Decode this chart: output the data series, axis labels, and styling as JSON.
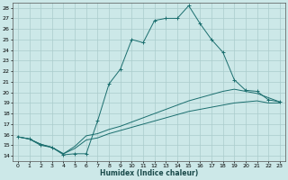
{
  "xlabel": "Humidex (Indice chaleur)",
  "bg_color": "#cce8e8",
  "line_color": "#1a6e6e",
  "grid_color": "#aacccc",
  "xlim": [
    -0.5,
    23.5
  ],
  "ylim": [
    13.5,
    28.5
  ],
  "xticks": [
    0,
    1,
    2,
    3,
    4,
    5,
    6,
    7,
    8,
    9,
    10,
    11,
    12,
    13,
    14,
    15,
    16,
    17,
    18,
    19,
    20,
    21,
    22,
    23
  ],
  "yticks": [
    14,
    15,
    16,
    17,
    18,
    19,
    20,
    21,
    22,
    23,
    24,
    25,
    26,
    27,
    28
  ],
  "line1_x": [
    0,
    1,
    2,
    3,
    4,
    5,
    6,
    7,
    8,
    9,
    10,
    11,
    12,
    13,
    14,
    15,
    16,
    17,
    18,
    19,
    20,
    21,
    22,
    23
  ],
  "line1_y": [
    15.8,
    15.6,
    15.0,
    14.8,
    14.1,
    14.2,
    14.2,
    17.3,
    20.8,
    22.2,
    25.0,
    24.7,
    26.8,
    27.0,
    27.0,
    28.2,
    26.5,
    25.0,
    23.8,
    21.2,
    20.2,
    20.1,
    19.3,
    19.1
  ],
  "line2_x": [
    0,
    1,
    2,
    3,
    4,
    5,
    6,
    7,
    8,
    9,
    10,
    11,
    12,
    13,
    14,
    15,
    16,
    17,
    18,
    19,
    20,
    21,
    22,
    23
  ],
  "line2_y": [
    15.8,
    15.6,
    15.1,
    14.8,
    14.2,
    14.7,
    15.5,
    15.7,
    16.1,
    16.4,
    16.7,
    17.0,
    17.3,
    17.6,
    17.9,
    18.2,
    18.4,
    18.6,
    18.8,
    19.0,
    19.1,
    19.2,
    19.0,
    19.0
  ],
  "line3_x": [
    0,
    1,
    2,
    3,
    4,
    5,
    6,
    7,
    8,
    9,
    10,
    11,
    12,
    13,
    14,
    15,
    16,
    17,
    18,
    19,
    20,
    21,
    22,
    23
  ],
  "line3_y": [
    15.8,
    15.6,
    15.1,
    14.8,
    14.2,
    14.9,
    15.9,
    16.1,
    16.5,
    16.8,
    17.2,
    17.6,
    18.0,
    18.4,
    18.8,
    19.2,
    19.5,
    19.8,
    20.1,
    20.3,
    20.1,
    19.9,
    19.5,
    19.1
  ]
}
